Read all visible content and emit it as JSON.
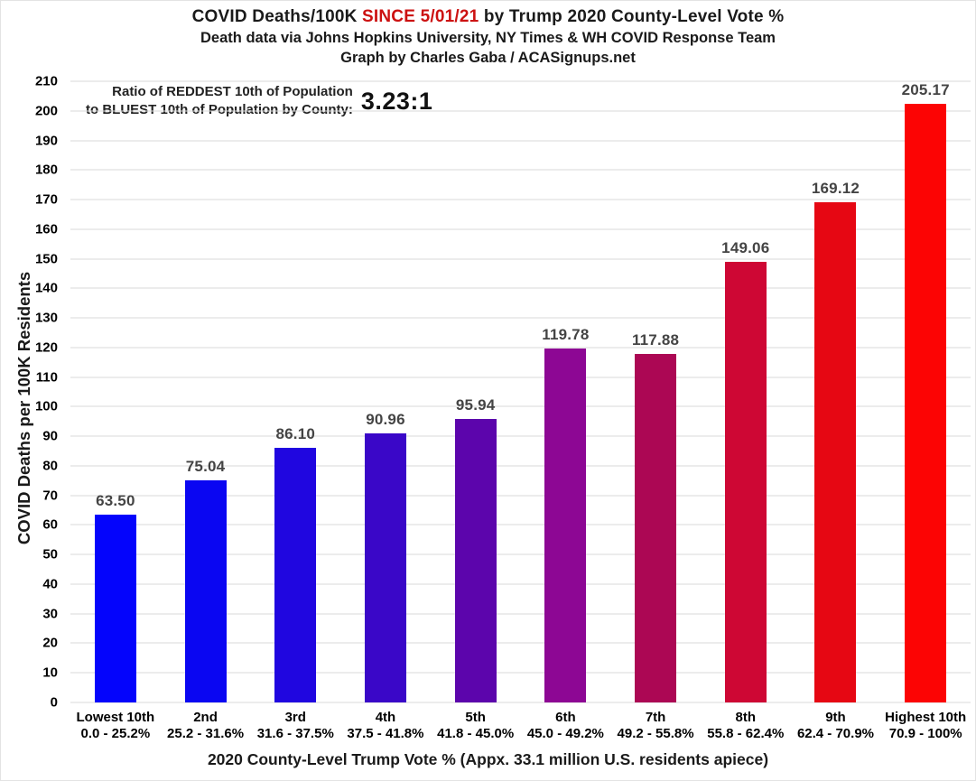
{
  "title": {
    "line1_prefix": "COVID Deaths/100K ",
    "line1_highlight": "SINCE 5/01/21",
    "line1_suffix": " by Trump 2020 County-Level Vote %",
    "line2": "Death data via Johns Hopkins University, NY Times & WH COVID Response Team",
    "line3": "Graph by Charles Gaba / ACASignups.net",
    "highlight_color": "#cc1111"
  },
  "annotation": {
    "line1": "Ratio of REDDEST 10th of Population",
    "line2": "to BLUEST 10th of Population by County:",
    "ratio": "3.23:1"
  },
  "chart_data": {
    "type": "bar",
    "title": "COVID Deaths/100K SINCE 5/01/21 by Trump 2020 County-Level Vote %",
    "xlabel": "2020 County-Level Trump Vote % (Appx. 33.1 million U.S. residents apiece)",
    "ylabel": "COVID Deaths per 100K Residents",
    "ylim": [
      0,
      210
    ],
    "ytick_step": 10,
    "grid": true,
    "legend": false,
    "categories": [
      "Lowest 10th",
      "2nd",
      "3rd",
      "4th",
      "5th",
      "6th",
      "7th",
      "8th",
      "9th",
      "Highest 10th"
    ],
    "category_ranges": [
      "0.0 - 25.2%",
      "25.2 - 31.6%",
      "31.6 - 37.5%",
      "37.5 - 41.8%",
      "41.8 - 45.0%",
      "45.0 - 49.2%",
      "49.2 - 55.8%",
      "55.8 - 62.4%",
      "62.4 - 70.9%",
      "70.9 - 100%"
    ],
    "values": [
      63.5,
      75.04,
      86.1,
      90.96,
      95.94,
      119.78,
      117.88,
      149.06,
      169.12,
      205.17
    ],
    "value_labels": [
      "63.50",
      "75.04",
      "86.10",
      "90.96",
      "95.94",
      "119.78",
      "117.88",
      "149.06",
      "169.12",
      "205.17"
    ],
    "bar_colors": [
      "#0404fc",
      "#0a06f2",
      "#2006e0",
      "#3a07c8",
      "#5c05ac",
      "#8d0794",
      "#ac0754",
      "#ce0734",
      "#e60713",
      "#fc0404"
    ],
    "gridline_color": "#d9d9d9",
    "value_label_color": "#444444"
  }
}
